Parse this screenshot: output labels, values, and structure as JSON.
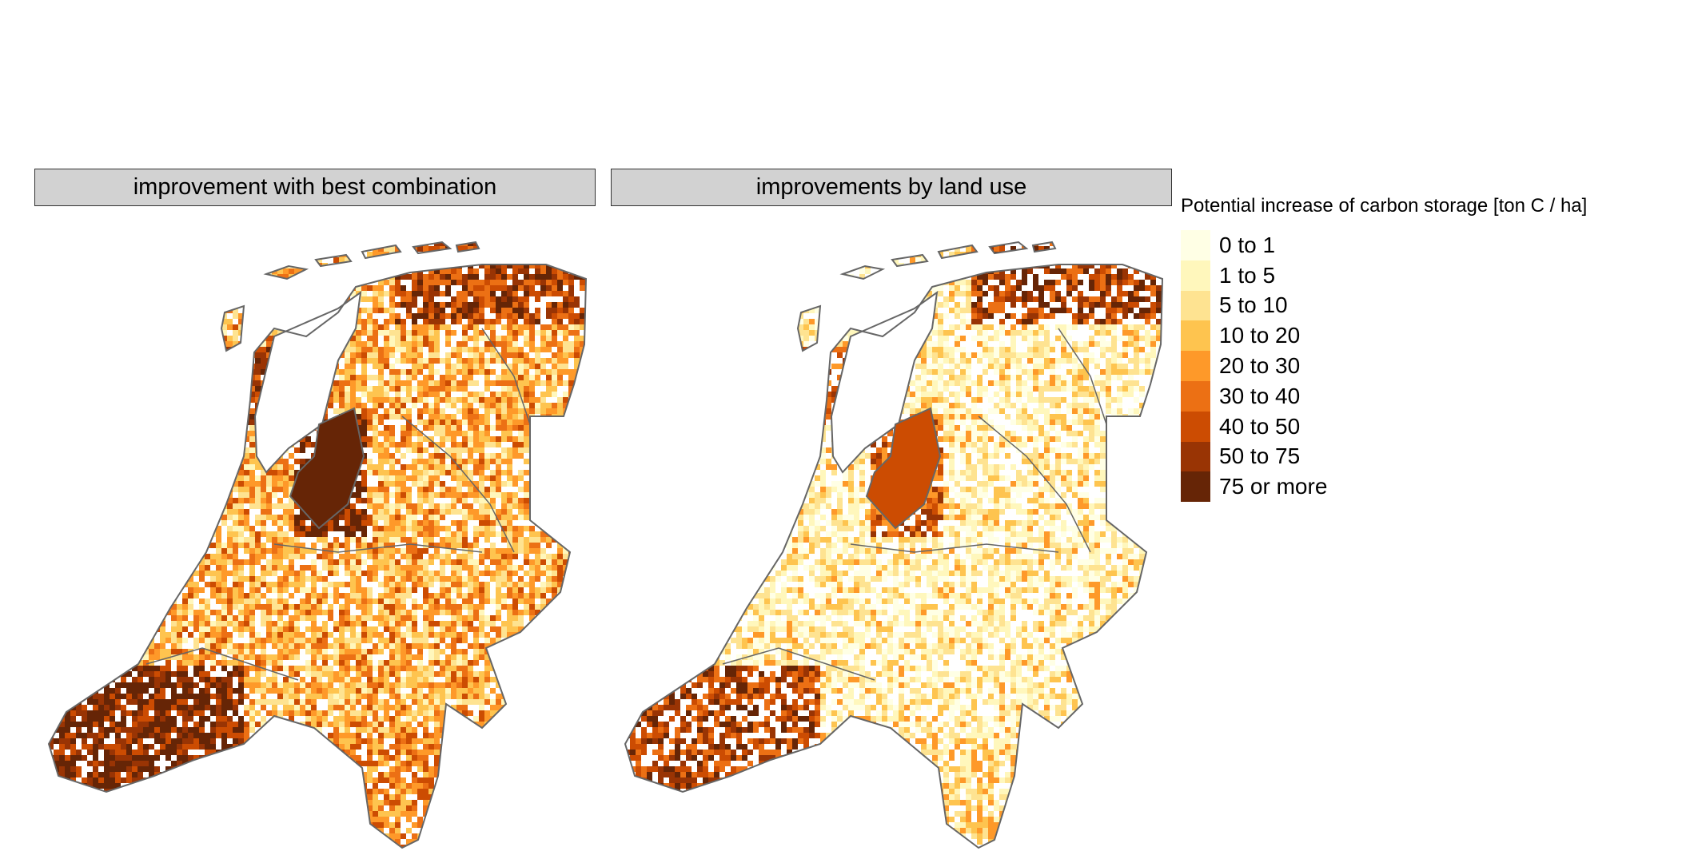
{
  "panels": [
    {
      "title": "improvement with best combination"
    },
    {
      "title": "improvements by land use"
    }
  ],
  "legend": {
    "title": "Potential increase of carbon storage [ton C / ha]",
    "classes": [
      {
        "label": "0 to 1",
        "color": "#FFFFE5"
      },
      {
        "label": "1 to 5",
        "color": "#FFF7BC"
      },
      {
        "label": "5 to 10",
        "color": "#FEE391"
      },
      {
        "label": "10 to 20",
        "color": "#FEC44F"
      },
      {
        "label": "20 to 30",
        "color": "#FE9929"
      },
      {
        "label": "30 to 40",
        "color": "#EC7014"
      },
      {
        "label": "40 to 50",
        "color": "#CC4C02"
      },
      {
        "label": "50 to 75",
        "color": "#993404"
      },
      {
        "label": "75 or more",
        "color": "#662506"
      }
    ]
  },
  "map": {
    "boundary_color": "#666666",
    "blank_color": "#ffffff"
  }
}
